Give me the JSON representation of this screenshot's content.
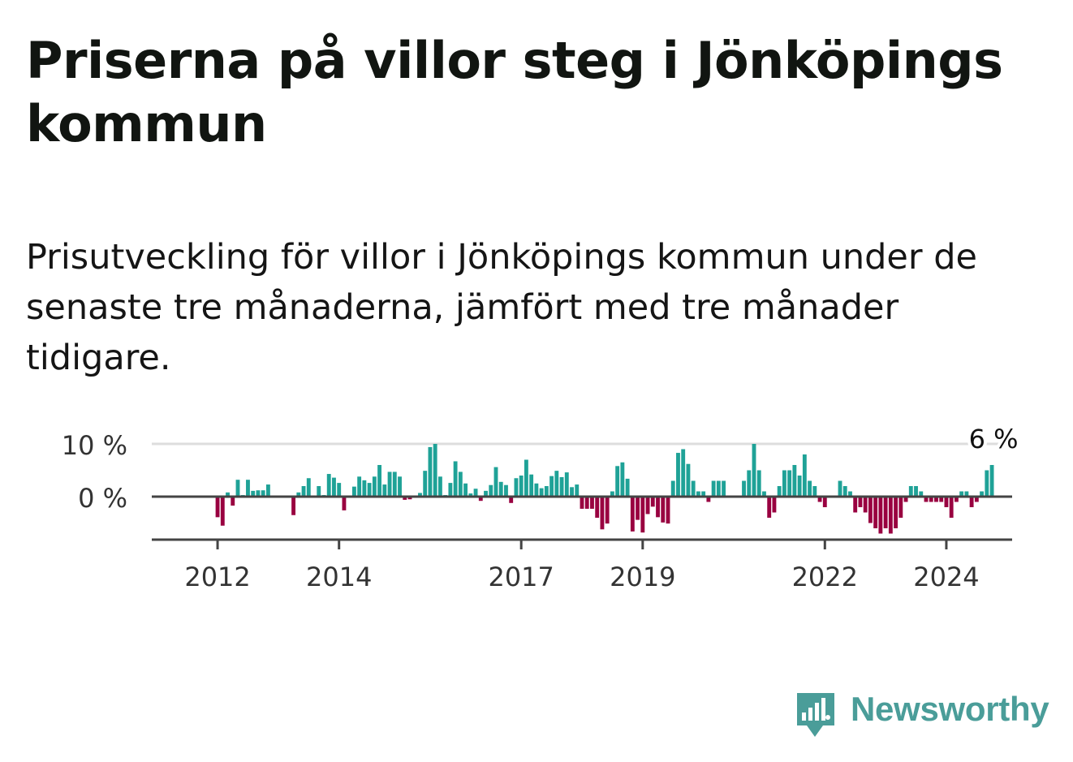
{
  "title": "Priserna på villor steg i Jönköpings kommun",
  "subtitle": "Prisutveckling för villor i Jönköpings kommun under de senaste tre månaderna, jämfört med tre månader tidigare.",
  "logo": {
    "text": "Newsworthy",
    "icon": "newsworthy-logo-icon",
    "color": "#4a9d99"
  },
  "colors": {
    "positive": "#1fa297",
    "negative": "#990040",
    "grid": "#dddddd",
    "axis": "#444444"
  },
  "chart_data": {
    "type": "bar",
    "title": "",
    "xlabel": "",
    "ylabel": "",
    "ylim": [
      -8.5,
      10
    ],
    "yticks": [
      0,
      10
    ],
    "ytick_labels": [
      "0 %",
      "10 %"
    ],
    "grid": true,
    "x_start": "2012-01",
    "x_end": "2024-08",
    "x_domain": [
      "2010-12",
      "2025-02"
    ],
    "xticks": [
      "2012",
      "2014",
      "2017",
      "2019",
      "2022",
      "2024"
    ],
    "last_value_label": "6 %",
    "values": [
      -3.9,
      -5.5,
      0.8,
      -1.7,
      3.2,
      0.3,
      3.2,
      1.1,
      1.2,
      1.2,
      2.3,
      0,
      0,
      0,
      0,
      -3.5,
      0.8,
      2.0,
      3.5,
      0,
      2.0,
      0.3,
      4.3,
      3.6,
      2.6,
      -2.6,
      0,
      1.9,
      3.8,
      3.1,
      2.6,
      3.8,
      6.0,
      2.3,
      4.7,
      4.7,
      3.8,
      -0.6,
      -0.5,
      0,
      0.7,
      4.9,
      9.4,
      10.0,
      3.8,
      0.3,
      2.6,
      6.7,
      4.7,
      2.5,
      0.6,
      1.5,
      -0.8,
      1.1,
      2.2,
      5.6,
      2.8,
      2.2,
      -1.2,
      3.5,
      4.0,
      7.0,
      4.2,
      2.5,
      1.6,
      2.0,
      3.9,
      4.9,
      3.7,
      4.6,
      1.8,
      2.3,
      -2.3,
      -2.3,
      -2.3,
      -4.0,
      -6.2,
      -5.1,
      1.0,
      5.8,
      6.5,
      3.4,
      -6.6,
      -4.4,
      -6.8,
      -3.3,
      -1.9,
      -3.9,
      -4.9,
      -5.1,
      3.0,
      8.3,
      9.0,
      6.2,
      3.0,
      1.0,
      1.0,
      -1.0,
      3.0,
      3.0,
      3.0,
      0,
      0,
      0,
      3.0,
      5.0,
      10.0,
      5.0,
      1.0,
      -4.0,
      -3.0,
      2.0,
      5.0,
      5.0,
      6.0,
      4.0,
      8.0,
      3.0,
      2.0,
      -1.0,
      -2.0,
      0,
      0,
      3.0,
      2.0,
      1.0,
      -3.0,
      -2.0,
      -3.0,
      -5.0,
      -6.0,
      -7.0,
      -6.0,
      -7.0,
      -6.0,
      -4.0,
      -1.0,
      2.0,
      2.0,
      1.0,
      -1.0,
      -1.0,
      -1.0,
      -1.0,
      -2.0,
      -4.0,
      -1.0,
      1.0,
      1.0,
      -2.0,
      -1.0,
      1.0,
      5.0,
      6.0
    ]
  }
}
